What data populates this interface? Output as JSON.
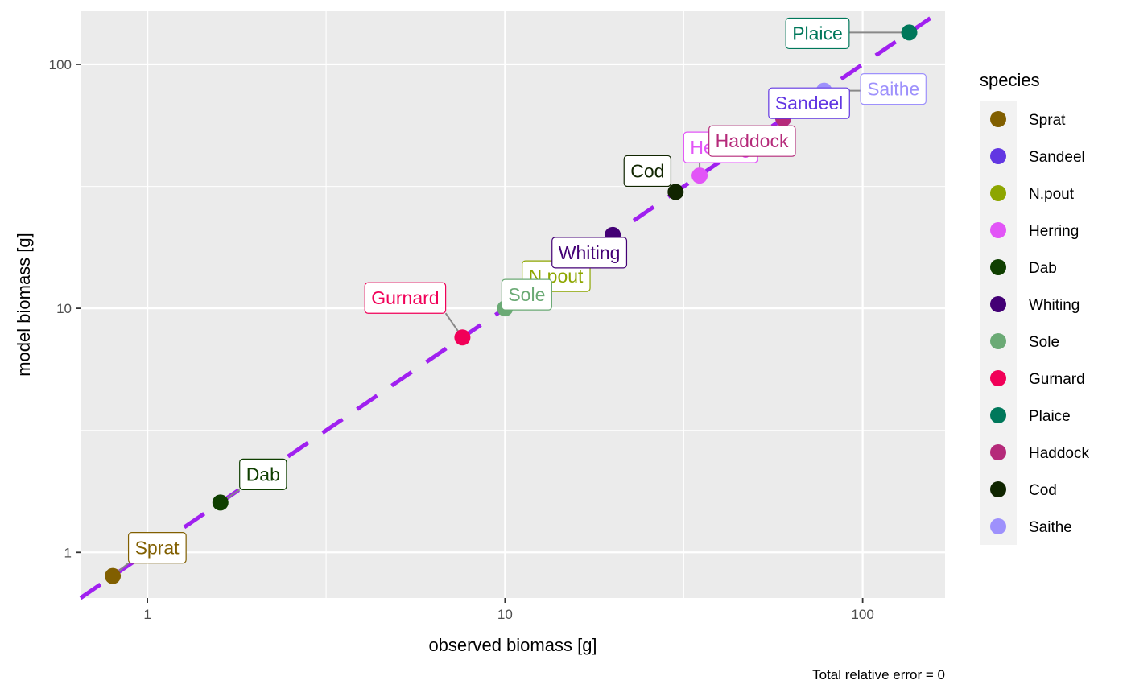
{
  "chart_data": {
    "type": "scatter",
    "title": "",
    "xlabel": "observed biomass [g]",
    "ylabel": "model biomass [g]",
    "x_scale": "log10",
    "y_scale": "log10",
    "xlim": [
      0.65,
      170
    ],
    "ylim": [
      0.65,
      165
    ],
    "x_ticks": [
      {
        "value": 1,
        "label": "1"
      },
      {
        "value": 10,
        "label": "10"
      },
      {
        "value": 100,
        "label": "100"
      }
    ],
    "y_ticks": [
      {
        "value": 1,
        "label": "1"
      },
      {
        "value": 10,
        "label": "10"
      },
      {
        "value": 100,
        "label": "100"
      }
    ],
    "grid": true,
    "reference_line": {
      "slope": 1,
      "style": "dashed",
      "color": "#A020F0"
    },
    "legend": {
      "title": "species",
      "position": "right"
    },
    "caption": "Total relative error = 0",
    "points": [
      {
        "species": "Sprat",
        "observed": 0.8,
        "model": 0.8,
        "color": "#815F00"
      },
      {
        "species": "Sandeel",
        "observed": 60,
        "model": 60,
        "color": "#6237E2"
      },
      {
        "species": "N.pout",
        "observed": 12,
        "model": 12,
        "color": "#8DA600"
      },
      {
        "species": "Herring",
        "observed": 35,
        "model": 35,
        "color": "#E255F7"
      },
      {
        "species": "Dab",
        "observed": 1.6,
        "model": 1.6,
        "color": "#0F3F00"
      },
      {
        "species": "Whiting",
        "observed": 20,
        "model": 20,
        "color": "#430075"
      },
      {
        "species": "Sole",
        "observed": 10,
        "model": 10,
        "color": "#6BAA75"
      },
      {
        "species": "Gurnard",
        "observed": 7.6,
        "model": 7.6,
        "color": "#F10058"
      },
      {
        "species": "Plaice",
        "observed": 135,
        "model": 135,
        "color": "#00785B"
      },
      {
        "species": "Haddock",
        "observed": 60,
        "model": 60,
        "color": "#B52A7A"
      },
      {
        "species": "Cod",
        "observed": 30,
        "model": 30,
        "color": "#102500"
      },
      {
        "species": "Saithe",
        "observed": 78,
        "model": 78,
        "color": "#9E91FC"
      }
    ]
  }
}
